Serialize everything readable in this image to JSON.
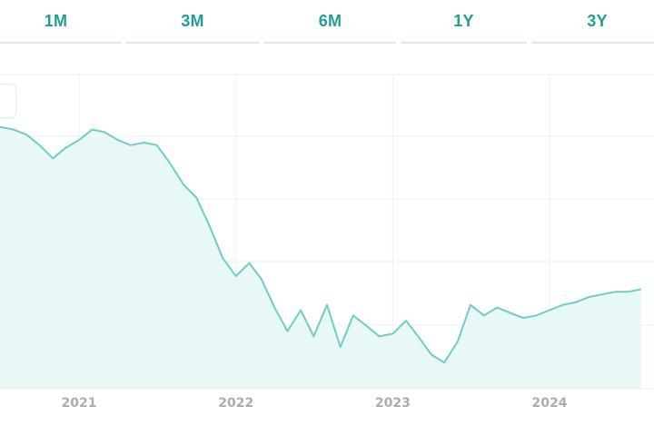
{
  "range_selector": {
    "buttons": [
      {
        "label": "1M"
      },
      {
        "label": "3M"
      },
      {
        "label": "6M"
      },
      {
        "label": "1Y"
      },
      {
        "label": "3Y"
      }
    ]
  },
  "colors": {
    "accent": "#1f9e97",
    "line": "#72cbc6",
    "fill": "#e7f8f7",
    "grid": "#eceff2",
    "tick_text": "#a7adb3"
  },
  "chart_data": {
    "type": "area",
    "title": "",
    "xlabel": "",
    "ylabel": "",
    "x_ticks": [
      "2021",
      "2022",
      "2023",
      "2024"
    ],
    "y_ticks_visible": false,
    "grid": true,
    "x_range": [
      "2020-07-01",
      "2024-08-31"
    ],
    "series": [
      {
        "name": "",
        "points": [
          [
            "2020-07-01",
            100
          ],
          [
            "2020-08-01",
            99
          ],
          [
            "2020-09-01",
            97
          ],
          [
            "2020-10-01",
            93
          ],
          [
            "2020-11-01",
            88
          ],
          [
            "2020-12-01",
            92
          ],
          [
            "2021-01-01",
            95
          ],
          [
            "2021-02-01",
            99
          ],
          [
            "2021-03-01",
            98
          ],
          [
            "2021-04-01",
            95
          ],
          [
            "2021-05-01",
            93
          ],
          [
            "2021-06-01",
            94
          ],
          [
            "2021-07-01",
            93
          ],
          [
            "2021-08-01",
            86
          ],
          [
            "2021-09-01",
            78
          ],
          [
            "2021-10-01",
            73
          ],
          [
            "2021-11-01",
            62
          ],
          [
            "2021-12-01",
            50
          ],
          [
            "2022-01-01",
            43
          ],
          [
            "2022-02-01",
            48
          ],
          [
            "2022-03-01",
            42
          ],
          [
            "2022-04-01",
            31
          ],
          [
            "2022-05-01",
            22
          ],
          [
            "2022-06-01",
            30
          ],
          [
            "2022-07-01",
            20
          ],
          [
            "2022-08-01",
            32
          ],
          [
            "2022-09-01",
            16
          ],
          [
            "2022-10-01",
            28
          ],
          [
            "2022-11-01",
            24
          ],
          [
            "2022-12-01",
            20
          ],
          [
            "2023-01-01",
            21
          ],
          [
            "2023-02-01",
            26
          ],
          [
            "2023-03-01",
            20
          ],
          [
            "2023-04-01",
            13
          ],
          [
            "2023-05-01",
            10
          ],
          [
            "2023-06-01",
            18
          ],
          [
            "2023-07-01",
            32
          ],
          [
            "2023-08-01",
            28
          ],
          [
            "2023-09-01",
            31
          ],
          [
            "2023-10-01",
            29
          ],
          [
            "2023-11-01",
            27
          ],
          [
            "2023-12-01",
            28
          ],
          [
            "2024-01-01",
            30
          ],
          [
            "2024-02-01",
            32
          ],
          [
            "2024-03-01",
            33
          ],
          [
            "2024-04-01",
            35
          ],
          [
            "2024-05-01",
            36
          ],
          [
            "2024-06-01",
            37
          ],
          [
            "2024-07-01",
            37
          ],
          [
            "2024-08-01",
            38
          ]
        ]
      }
    ],
    "ylim": [
      0,
      120
    ]
  }
}
